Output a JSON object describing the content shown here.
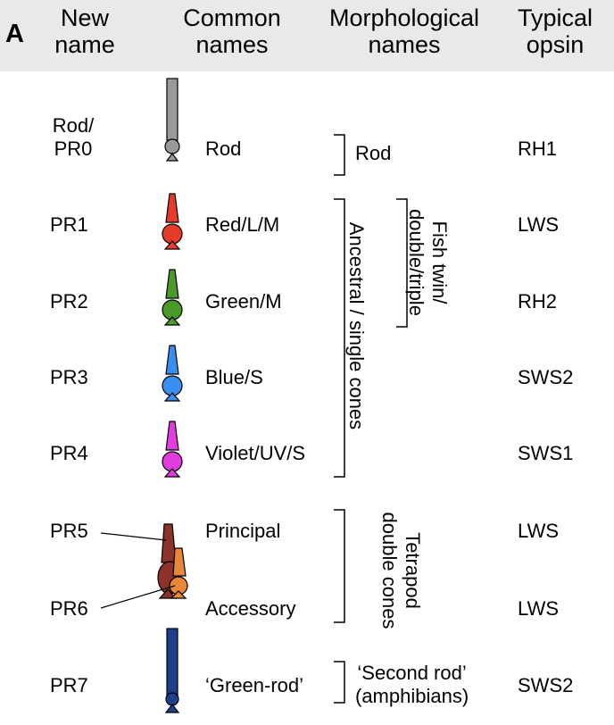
{
  "panel_label": "A",
  "headers": {
    "new_name": "New\nname",
    "common_names": "Common\nnames",
    "morphological_names": "Morphological\nnames",
    "typical_opsin": "Typical\nopsin"
  },
  "rows": [
    {
      "new_name": "Rod/\nPR0",
      "common_name": "Rod",
      "opsin": "RH1",
      "color": "#9a9a9a"
    },
    {
      "new_name": "PR1",
      "common_name": "Red/L/M",
      "opsin": "LWS",
      "color": "#e63a2a"
    },
    {
      "new_name": "PR2",
      "common_name": "Green/M",
      "opsin": "RH2",
      "color": "#4a9a2a"
    },
    {
      "new_name": "PR3",
      "common_name": "Blue/S",
      "opsin": "SWS2",
      "color": "#3a8ef0"
    },
    {
      "new_name": "PR4",
      "common_name": "Violet/UV/S",
      "opsin": "SWS1",
      "color": "#e03ce0"
    },
    {
      "new_name": "PR5",
      "common_name": "Principal",
      "opsin": "LWS",
      "color": "#8c3228"
    },
    {
      "new_name": "PR6",
      "common_name": "Accessory",
      "opsin": "LWS",
      "color": "#e8863a"
    },
    {
      "new_name": "PR7",
      "common_name": "‘Green-rod’",
      "opsin": "SWS2",
      "color": "#1e3f8c"
    }
  ],
  "morphological_groups": {
    "rod": "Rod",
    "ancestral_single": "Ancestral / single cones",
    "fish_twin": "Fish twin/\ndouble/triple",
    "tetrapod_double": "Tetrapod\ndouble cones",
    "second_rod": "‘Second rod’\n(amphibians)"
  }
}
